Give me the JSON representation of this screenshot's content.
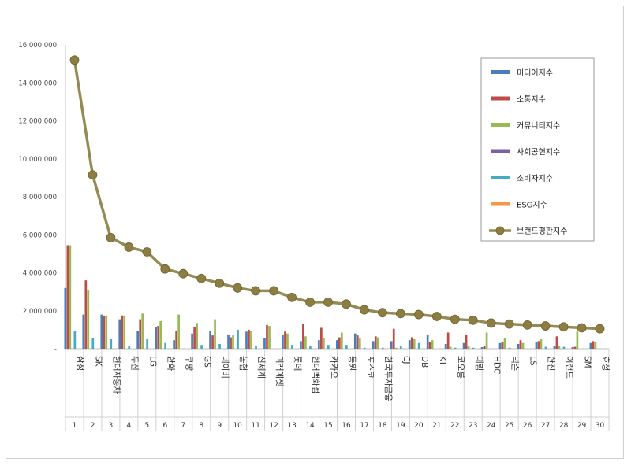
{
  "chart_data": {
    "type": "bar",
    "title": "",
    "xlabel": "",
    "ylabel": "",
    "ylim": [
      0,
      16000000
    ],
    "yticks": [
      "-",
      "2,000,000",
      "4,000,000",
      "6,000,000",
      "8,000,000",
      "10,000,000",
      "12,000,000",
      "14,000,000",
      "16,000,000"
    ],
    "grid": false,
    "legend_position": "right",
    "categories": [
      "삼성",
      "SK",
      "현대자동차",
      "두산",
      "LG",
      "한화",
      "쿠팡",
      "GS",
      "네이버",
      "농협",
      "신세계",
      "미래에셋",
      "롯데",
      "현대백화점",
      "카카오",
      "동원",
      "포스코",
      "한국투자금융",
      "CJ",
      "DB",
      "KT",
      "코오롱",
      "대림",
      "HDC",
      "넥슨",
      "LS",
      "한진",
      "이랜드",
      "SM",
      "효성"
    ],
    "ranks": [
      "1",
      "2",
      "3",
      "4",
      "5",
      "6",
      "7",
      "8",
      "9",
      "10",
      "11",
      "12",
      "13",
      "14",
      "15",
      "16",
      "17",
      "18",
      "19",
      "20",
      "21",
      "22",
      "23",
      "24",
      "25",
      "26",
      "27",
      "28",
      "29",
      "30"
    ],
    "series": [
      {
        "name": "미디어지수",
        "color": "#4a7ebb",
        "values": [
          3200000,
          1800000,
          1800000,
          1550000,
          950000,
          1150000,
          450000,
          800000,
          950000,
          750000,
          900000,
          550000,
          750000,
          400000,
          450000,
          450000,
          800000,
          400000,
          400000,
          450000,
          750000,
          250000,
          300000,
          80000,
          300000,
          250000,
          350000,
          150000,
          80000,
          300000
        ]
      },
      {
        "name": "소통지수",
        "color": "#be4b48",
        "values": [
          5450000,
          3600000,
          1700000,
          1750000,
          1550000,
          1200000,
          950000,
          1150000,
          700000,
          600000,
          1000000,
          1250000,
          900000,
          1300000,
          1100000,
          600000,
          700000,
          650000,
          1050000,
          600000,
          350000,
          850000,
          750000,
          150000,
          350000,
          450000,
          400000,
          650000,
          100000,
          400000
        ]
      },
      {
        "name": "커뮤니티지수",
        "color": "#98b954",
        "values": [
          5450000,
          3100000,
          1750000,
          1750000,
          1850000,
          1450000,
          1800000,
          1350000,
          1550000,
          700000,
          950000,
          1200000,
          800000,
          650000,
          550000,
          850000,
          550000,
          600000,
          50000,
          500000,
          450000,
          100000,
          150000,
          850000,
          550000,
          300000,
          500000,
          150000,
          900000,
          350000
        ]
      },
      {
        "name": "사회공헌지수",
        "color": "#7d60a0",
        "values": [
          0,
          0,
          0,
          0,
          0,
          0,
          0,
          0,
          0,
          0,
          0,
          0,
          0,
          0,
          0,
          0,
          0,
          0,
          0,
          0,
          0,
          0,
          0,
          0,
          0,
          0,
          0,
          0,
          0,
          0
        ]
      },
      {
        "name": "소비자지수",
        "color": "#46aac5",
        "values": [
          950000,
          550000,
          500000,
          150000,
          500000,
          300000,
          0,
          200000,
          250000,
          1000000,
          150000,
          0,
          200000,
          150000,
          200000,
          200000,
          50000,
          50000,
          150000,
          300000,
          0,
          50000,
          50000,
          0,
          50000,
          0,
          100000,
          100000,
          0,
          0
        ]
      },
      {
        "name": "ESG지수",
        "color": "#f79646",
        "values": [
          0,
          0,
          0,
          0,
          0,
          0,
          0,
          0,
          0,
          0,
          0,
          0,
          0,
          0,
          0,
          0,
          0,
          0,
          0,
          0,
          0,
          0,
          0,
          0,
          0,
          0,
          0,
          0,
          0,
          0
        ]
      }
    ],
    "line": {
      "name": "브랜드평판지수",
      "color": "#948a54",
      "marker_color": "#8c7e43",
      "values": [
        15200000,
        9150000,
        5850000,
        5350000,
        5100000,
        4200000,
        3950000,
        3700000,
        3450000,
        3200000,
        3050000,
        3050000,
        2700000,
        2450000,
        2450000,
        2350000,
        2050000,
        1900000,
        1850000,
        1800000,
        1700000,
        1550000,
        1500000,
        1350000,
        1300000,
        1250000,
        1200000,
        1150000,
        1100000,
        1050000
      ]
    }
  }
}
